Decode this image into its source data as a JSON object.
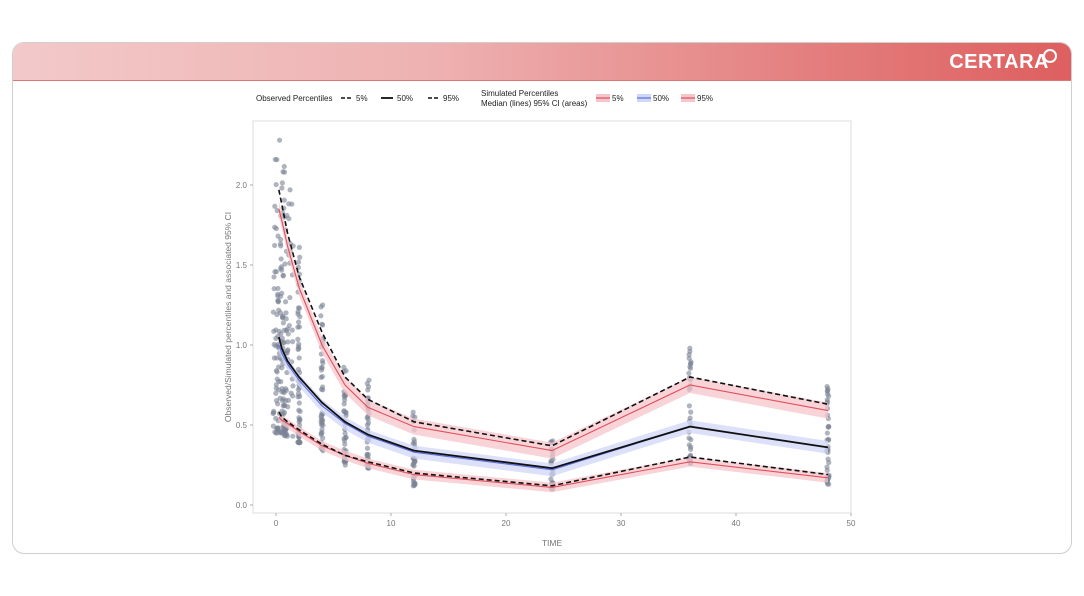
{
  "brand": {
    "logo_text": "CERTARA",
    "banner_color": "#e05c5c"
  },
  "chart_data": {
    "type": "line",
    "xlabel": "TIME",
    "ylabel": "Observed/Simulated percentiles and associated 95% CI",
    "xlim": [
      -2,
      50
    ],
    "ylim": [
      -0.05,
      2.4
    ],
    "xticks": [
      0,
      10,
      20,
      30,
      40,
      50
    ],
    "yticks": [
      0.0,
      0.5,
      1.0,
      1.5,
      2.0
    ],
    "legend": {
      "placement": "top",
      "observed_title": "Observed Percentiles",
      "observed_entries": [
        "5%",
        "50%",
        "95%"
      ],
      "simulated_title_line1": "Simulated Percentiles",
      "simulated_title_line2": "Median (lines) 95% CI (areas)",
      "simulated_entries": [
        "5%",
        "50%",
        "95%"
      ]
    },
    "colors": {
      "observed_line": "#111111",
      "sim_outer": "#e0505a",
      "sim_outer_band": "#f5c6cc",
      "sim_median": "#5a6fe0",
      "sim_median_band": "#d0d6f5",
      "points": "#7a8294"
    },
    "x": [
      0.25,
      0.5,
      1,
      2,
      4,
      6,
      8,
      12,
      24,
      36,
      48
    ],
    "observed": [
      {
        "name": "5%",
        "style": "dashed",
        "values": [
          0.58,
          0.55,
          0.52,
          0.47,
          0.38,
          0.31,
          0.27,
          0.2,
          0.12,
          0.3,
          0.19
        ]
      },
      {
        "name": "50%",
        "style": "solid",
        "values": [
          1.05,
          0.98,
          0.9,
          0.8,
          0.64,
          0.52,
          0.44,
          0.34,
          0.23,
          0.49,
          0.36
        ]
      },
      {
        "name": "95%",
        "style": "dashed",
        "values": [
          1.97,
          1.88,
          1.7,
          1.43,
          1.08,
          0.8,
          0.66,
          0.52,
          0.37,
          0.8,
          0.63
        ]
      }
    ],
    "simulated": [
      {
        "name": "5%",
        "values": [
          0.55,
          0.53,
          0.51,
          0.46,
          0.37,
          0.31,
          0.26,
          0.19,
          0.11,
          0.27,
          0.17
        ],
        "band": 0.03
      },
      {
        "name": "50%",
        "values": [
          1.0,
          0.95,
          0.88,
          0.78,
          0.62,
          0.51,
          0.43,
          0.33,
          0.22,
          0.49,
          0.36
        ],
        "band": 0.04
      },
      {
        "name": "95%",
        "values": [
          1.85,
          1.78,
          1.62,
          1.36,
          1.0,
          0.75,
          0.61,
          0.49,
          0.34,
          0.75,
          0.59
        ],
        "band": 0.05
      }
    ],
    "point_ranges": [
      {
        "x": 0.25,
        "min": 0.45,
        "max": 2.28,
        "n": 70
      },
      {
        "x": 0.5,
        "min": 0.44,
        "max": 2.08,
        "n": 60
      },
      {
        "x": 1,
        "min": 0.43,
        "max": 1.97,
        "n": 60
      },
      {
        "x": 2,
        "min": 0.39,
        "max": 1.61,
        "n": 55
      },
      {
        "x": 4,
        "min": 0.34,
        "max": 1.25,
        "n": 45
      },
      {
        "x": 6,
        "min": 0.25,
        "max": 0.86,
        "n": 40
      },
      {
        "x": 8,
        "min": 0.23,
        "max": 0.78,
        "n": 38
      },
      {
        "x": 12,
        "min": 0.12,
        "max": 0.58,
        "n": 32
      },
      {
        "x": 24,
        "min": 0.1,
        "max": 0.4,
        "n": 30
      },
      {
        "x": 36,
        "min": 0.26,
        "max": 0.98,
        "n": 40
      },
      {
        "x": 48,
        "min": 0.13,
        "max": 0.74,
        "n": 40
      }
    ]
  }
}
